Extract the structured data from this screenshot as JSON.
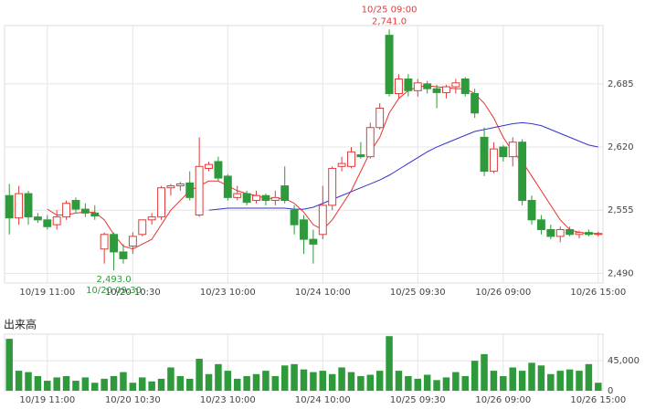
{
  "chart_data": [
    {
      "type": "candlestick",
      "categories": [
        null,
        null,
        null,
        null,
        "10/19 11:00",
        null,
        null,
        null,
        null,
        null,
        null,
        null,
        null,
        "10/20 10:30",
        null,
        null,
        null,
        null,
        null,
        null,
        null,
        null,
        null,
        "10/23 10:00",
        null,
        null,
        null,
        null,
        null,
        null,
        null,
        null,
        null,
        "10/24 10:00",
        null,
        null,
        null,
        null,
        null,
        null,
        null,
        null,
        null,
        "10/25 09:30",
        null,
        null,
        null,
        null,
        null,
        null,
        null,
        null,
        "10/26 09:00",
        null,
        null,
        null,
        null,
        null,
        null,
        null,
        null,
        null,
        "10/26 15:00"
      ],
      "open": [
        2570,
        2547,
        2572,
        2548,
        2545,
        2540,
        2548,
        2565,
        2556,
        2552,
        2515,
        2530,
        2512,
        2518,
        2530,
        2545,
        2548,
        2578,
        2580,
        2583,
        2550,
        2598,
        2605,
        2590,
        2568,
        2572,
        2565,
        2570,
        2565,
        2580,
        2555,
        2545,
        2525,
        2530,
        2560,
        2600,
        2600,
        2612,
        2610,
        2640,
        2735,
        2675,
        2690,
        2678,
        2685,
        2680,
        2676,
        2682,
        2690,
        2675,
        2630,
        2595,
        2620,
        2610,
        2625,
        2565,
        2545,
        2535,
        2528,
        2535,
        2530,
        2532,
        2530
      ],
      "high": [
        2582,
        2580,
        2575,
        2552,
        2550,
        2555,
        2565,
        2568,
        2562,
        2560,
        2532,
        2532,
        2520,
        2532,
        2545,
        2552,
        2580,
        2582,
        2584,
        2595,
        2630,
        2605,
        2610,
        2592,
        2580,
        2575,
        2575,
        2572,
        2575,
        2600,
        2560,
        2550,
        2535,
        2580,
        2600,
        2610,
        2620,
        2625,
        2645,
        2665,
        2741,
        2695,
        2695,
        2690,
        2688,
        2684,
        2684,
        2690,
        2692,
        2680,
        2640,
        2625,
        2622,
        2630,
        2628,
        2570,
        2550,
        2540,
        2538,
        2538,
        2534,
        2535,
        2533
      ],
      "low": [
        2530,
        2540,
        2540,
        2542,
        2535,
        2535,
        2545,
        2552,
        2548,
        2545,
        2500,
        2493,
        2500,
        2510,
        2528,
        2540,
        2545,
        2570,
        2575,
        2565,
        2548,
        2595,
        2585,
        2565,
        2565,
        2560,
        2562,
        2560,
        2560,
        2562,
        2530,
        2510,
        2500,
        2525,
        2555,
        2595,
        2598,
        2608,
        2608,
        2638,
        2672,
        2670,
        2672,
        2672,
        2675,
        2660,
        2670,
        2675,
        2672,
        2650,
        2590,
        2593,
        2605,
        2600,
        2560,
        2540,
        2530,
        2525,
        2522,
        2528,
        2526,
        2528,
        2528
      ],
      "close": [
        2547,
        2572,
        2548,
        2545,
        2538,
        2548,
        2562,
        2556,
        2552,
        2549,
        2530,
        2512,
        2505,
        2528,
        2545,
        2548,
        2578,
        2580,
        2582,
        2568,
        2600,
        2602,
        2588,
        2568,
        2572,
        2563,
        2570,
        2565,
        2568,
        2565,
        2540,
        2525,
        2520,
        2560,
        2598,
        2603,
        2615,
        2610,
        2640,
        2660,
        2675,
        2690,
        2678,
        2686,
        2680,
        2676,
        2682,
        2686,
        2675,
        2655,
        2595,
        2618,
        2610,
        2625,
        2565,
        2545,
        2535,
        2528,
        2535,
        2530,
        2532,
        2530,
        2531
      ],
      "up_color": "#e03a3a",
      "down_color": "#2f9a3c",
      "lines": [
        {
          "color": "#e8312f",
          "values": [
            null,
            null,
            null,
            null,
            2556,
            2550,
            2550,
            2552,
            2553,
            2553,
            2545,
            2530,
            2518,
            2515,
            2520,
            2525,
            2540,
            2555,
            2565,
            2575,
            2580,
            2585,
            2585,
            2580,
            2575,
            2572,
            2570,
            2567,
            2567,
            2567,
            2562,
            2553,
            2540,
            2535,
            2545,
            2560,
            2575,
            2595,
            2615,
            2630,
            2655,
            2670,
            2678,
            2682,
            2683,
            2682,
            2681,
            2680,
            2680,
            2675,
            2665,
            2650,
            2630,
            2615,
            2605,
            2590,
            2575,
            2560,
            2545,
            2535,
            2532,
            2531,
            2531
          ]
        },
        {
          "color": "#3434c8",
          "values": [
            null,
            null,
            null,
            null,
            null,
            null,
            null,
            null,
            null,
            null,
            null,
            null,
            null,
            null,
            null,
            null,
            null,
            null,
            null,
            null,
            null,
            2555,
            2556,
            2557,
            2557,
            2557,
            2557,
            2557,
            2557,
            2557,
            2556,
            2556,
            2558,
            2562,
            2566,
            2570,
            2574,
            2578,
            2582,
            2586,
            2591,
            2597,
            2603,
            2609,
            2615,
            2620,
            2624,
            2628,
            2632,
            2636,
            2638,
            2640,
            2642,
            2644,
            2645,
            2644,
            2642,
            2638,
            2634,
            2630,
            2626,
            2622,
            2620
          ]
        }
      ],
      "high_annotation": {
        "date": "10/25 09:00",
        "price": "2,741.0"
      },
      "low_annotation": {
        "price": "2,493.0",
        "date": "10/20 09:30"
      },
      "ylim": [
        2480,
        2745
      ],
      "yticks": [
        {
          "value": 2490,
          "label": "2,490"
        },
        {
          "value": 2555,
          "label": "2,555"
        },
        {
          "value": 2620,
          "label": "2,620"
        },
        {
          "value": 2685,
          "label": "2,685"
        }
      ],
      "grid": true
    },
    {
      "type": "bar",
      "title": "出来高",
      "categories": [
        null,
        null,
        null,
        null,
        "10/19 11:00",
        null,
        null,
        null,
        null,
        null,
        null,
        null,
        null,
        "10/20 10:30",
        null,
        null,
        null,
        null,
        null,
        null,
        null,
        null,
        null,
        "10/23 10:00",
        null,
        null,
        null,
        null,
        null,
        null,
        null,
        null,
        null,
        "10/24 10:00",
        null,
        null,
        null,
        null,
        null,
        null,
        null,
        null,
        null,
        "10/25 09:30",
        null,
        null,
        null,
        null,
        null,
        null,
        null,
        null,
        "10/26 09:00",
        null,
        null,
        null,
        null,
        null,
        null,
        null,
        null,
        null,
        "10/26 15:00"
      ],
      "values": [
        78000,
        30000,
        28000,
        22000,
        15000,
        20000,
        22000,
        15000,
        20000,
        12000,
        18000,
        22000,
        28000,
        12000,
        20000,
        14000,
        18000,
        35000,
        22000,
        18000,
        48000,
        25000,
        40000,
        30000,
        18000,
        22000,
        25000,
        30000,
        22000,
        38000,
        40000,
        32000,
        28000,
        30000,
        25000,
        35000,
        28000,
        22000,
        24000,
        30000,
        82000,
        30000,
        22000,
        18000,
        24000,
        16000,
        20000,
        28000,
        22000,
        45000,
        55000,
        30000,
        22000,
        35000,
        30000,
        42000,
        38000,
        25000,
        30000,
        32000,
        30000,
        40000,
        12000
      ],
      "color": "#2f9a3c",
      "ylim": [
        0,
        85000
      ],
      "yticks": [
        0,
        {
          "value": 45000,
          "label": "45,000"
        }
      ],
      "grid": true
    }
  ]
}
